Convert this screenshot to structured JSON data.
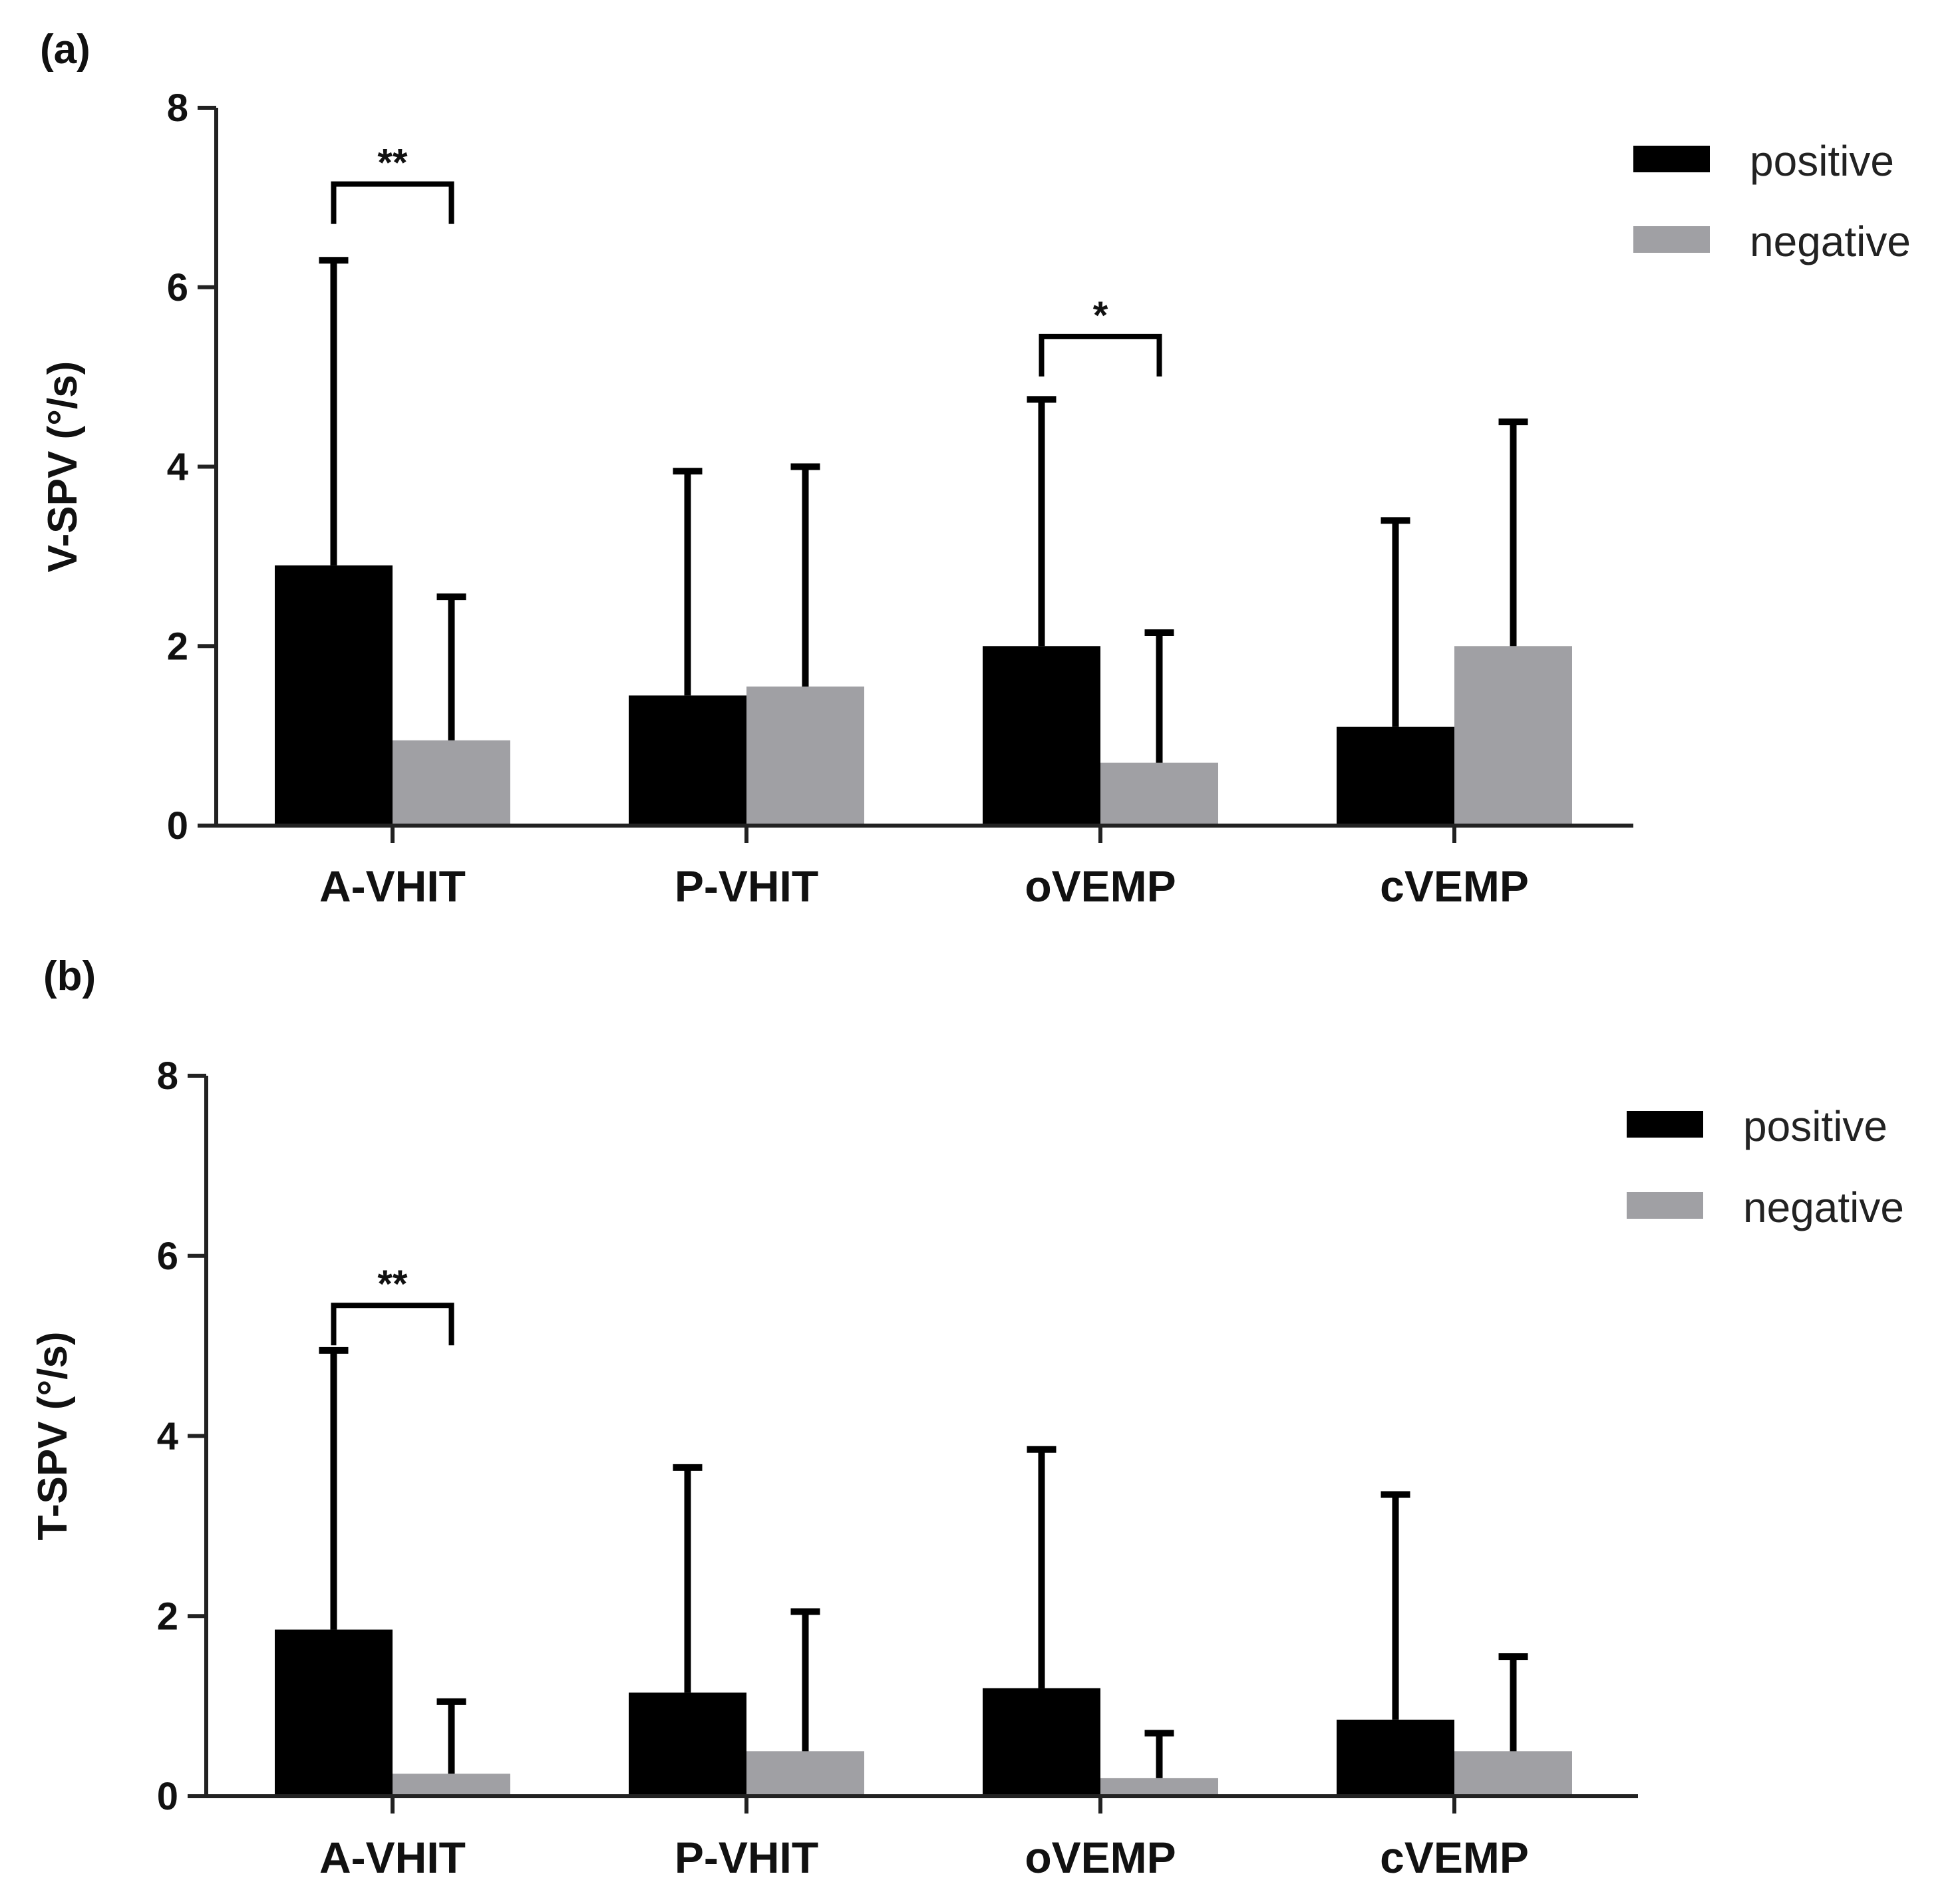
{
  "chart_data": [
    {
      "type": "bar",
      "panel_label": "(a)",
      "ylabel": "V-SPV (°/s)",
      "xlabel": "",
      "categories": [
        "A-VHIT",
        "P-VHIT",
        "oVEMP",
        "cVEMP"
      ],
      "ylim": [
        0,
        8
      ],
      "yticks": [
        0,
        2,
        4,
        6,
        8
      ],
      "series": [
        {
          "name": "positive",
          "color": "#000000",
          "values": [
            2.9,
            1.45,
            2.0,
            1.1
          ],
          "error": [
            3.4,
            2.5,
            2.75,
            2.3
          ]
        },
        {
          "name": "negative",
          "color": "#a0a0a4",
          "values": [
            0.95,
            1.55,
            0.7,
            2.0
          ],
          "error": [
            1.6,
            2.45,
            1.45,
            2.5
          ]
        }
      ],
      "significance": [
        {
          "category": "A-VHIT",
          "label": "**",
          "y": 7.15
        },
        {
          "category": "oVEMP",
          "label": "*",
          "y": 5.45
        }
      ],
      "legend": {
        "entries": [
          "positive",
          "negative"
        ],
        "position": "top-right"
      },
      "grid": false
    },
    {
      "type": "bar",
      "panel_label": "(b)",
      "ylabel": "T-SPV (°/s)",
      "xlabel": "",
      "categories": [
        "A-VHIT",
        "P-VHIT",
        "oVEMP",
        "cVEMP"
      ],
      "ylim": [
        0,
        8
      ],
      "yticks": [
        0,
        2,
        4,
        6,
        8
      ],
      "series": [
        {
          "name": "positive",
          "color": "#000000",
          "values": [
            1.85,
            1.15,
            1.2,
            0.85
          ],
          "error": [
            3.1,
            2.5,
            2.65,
            2.5
          ]
        },
        {
          "name": "negative",
          "color": "#a0a0a4",
          "values": [
            0.25,
            0.5,
            0.2,
            0.5
          ],
          "error": [
            0.8,
            1.55,
            0.5,
            1.05
          ]
        }
      ],
      "significance": [
        {
          "category": "A-VHIT",
          "label": "**",
          "y": 5.45
        }
      ],
      "legend": {
        "entries": [
          "positive",
          "negative"
        ],
        "position": "top-right"
      },
      "grid": false
    }
  ]
}
